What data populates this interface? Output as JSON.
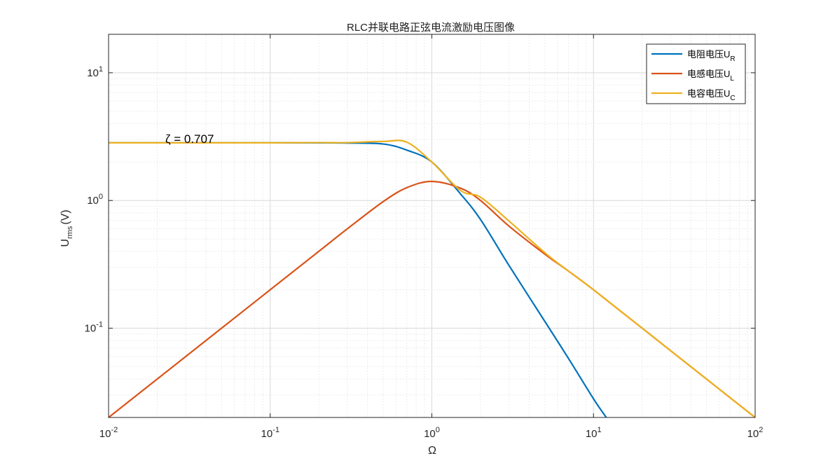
{
  "chart_data": {
    "type": "line",
    "title": "RLC并联电路正弦电流激励电压图像",
    "xlabel": "Ω",
    "ylabel_main": "U",
    "ylabel_sub": "rms",
    "ylabel_tail": "(V)",
    "xscale": "log",
    "yscale": "log",
    "xlim": [
      0.01,
      100
    ],
    "ylim": [
      0.02,
      20
    ],
    "grid": true,
    "minor_grid": true,
    "legend_position": "top-right",
    "annotation": "ζ = 0.707",
    "x_ticks": [
      {
        "base": "10",
        "exp": "-2",
        "value": 0.01
      },
      {
        "base": "10",
        "exp": "-1",
        "value": 0.1
      },
      {
        "base": "10",
        "exp": "0",
        "value": 1
      },
      {
        "base": "10",
        "exp": "1",
        "value": 10
      },
      {
        "base": "10",
        "exp": "2",
        "value": 100
      }
    ],
    "y_ticks": [
      {
        "base": "10",
        "exp": "-1",
        "value": 0.1
      },
      {
        "base": "10",
        "exp": "0",
        "value": 1
      },
      {
        "base": "10",
        "exp": "1",
        "value": 10
      }
    ],
    "series": [
      {
        "name_main": "电阻电压U",
        "name_sub": "R",
        "color": "#0072BD",
        "x": [
          0.01,
          0.03,
          0.1,
          0.2,
          0.3,
          0.5,
          0.7,
          1.0,
          1.5,
          2,
          3,
          5,
          7,
          10,
          12
        ],
        "y": [
          2.83,
          2.83,
          2.83,
          2.83,
          2.82,
          2.77,
          2.48,
          2.0,
          1.13,
          0.71,
          0.31,
          0.113,
          0.058,
          0.028,
          0.02
        ]
      },
      {
        "name_main": "电感电压U",
        "name_sub": "L",
        "color": "#D95319",
        "x": [
          0.01,
          0.03,
          0.1,
          0.2,
          0.3,
          0.5,
          0.7,
          1.0,
          1.5,
          2,
          3,
          5,
          7,
          10,
          20,
          50,
          100
        ],
        "y": [
          0.02,
          0.06,
          0.2,
          0.4,
          0.6,
          0.98,
          1.26,
          1.41,
          1.25,
          1.0,
          0.63,
          0.38,
          0.28,
          0.2,
          0.1,
          0.04,
          0.02
        ]
      },
      {
        "name_main": "电容电压U",
        "name_sub": "C",
        "color": "#EDB120",
        "x": [
          0.01,
          0.03,
          0.1,
          0.2,
          0.3,
          0.5,
          0.7,
          1.0,
          1.5,
          2,
          3,
          5,
          7,
          10,
          20,
          50,
          100
        ],
        "y": [
          2.83,
          2.83,
          2.83,
          2.84,
          2.84,
          2.9,
          2.86,
          2.0,
          1.2,
          1.06,
          0.69,
          0.39,
          0.28,
          0.2,
          0.1,
          0.04,
          0.02
        ]
      }
    ]
  }
}
